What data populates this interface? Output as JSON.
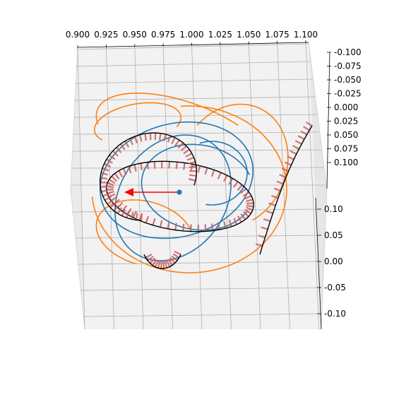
{
  "chart_data": {
    "type": "line3d",
    "title": "",
    "xlabel": "",
    "ylabel": "",
    "zlabel": "",
    "x_ticks": [
      "0.900",
      "0.925",
      "0.950",
      "0.975",
      "1.000",
      "1.025",
      "1.050",
      "1.075",
      "1.100"
    ],
    "y_ticks": [
      "-0.100",
      "-0.075",
      "-0.050",
      "-0.025",
      "0.000",
      "0.025",
      "0.050",
      "0.075",
      "0.100"
    ],
    "z_ticks": [
      "-0.10",
      "-0.05",
      "0.00",
      "0.05",
      "0.10"
    ],
    "xlim": [
      0.9,
      1.1
    ],
    "ylim": [
      -0.1,
      0.1
    ],
    "zlim": [
      -0.1,
      0.1
    ],
    "grid": true,
    "colors": {
      "blue_orbit": "#1f77b4",
      "orange_orbit": "#ff7f0e",
      "black_curve": "#000000",
      "hatch": "#cd5c5c",
      "arrow": "#ff0000",
      "point": "#1f77b4"
    },
    "series": [
      {
        "color": "#1f77b4",
        "kind": "orbit"
      },
      {
        "color": "#ff7f0e",
        "kind": "orbit"
      },
      {
        "color": "#000000",
        "kind": "curve"
      },
      {
        "color": "#cd5c5c",
        "kind": "hatch"
      }
    ],
    "point": {
      "x": 1.0,
      "y": 0.0,
      "z": 0.0
    },
    "arrow": {
      "from": [
        1.0,
        0.0,
        0.0
      ],
      "direction": "negative-x"
    }
  }
}
